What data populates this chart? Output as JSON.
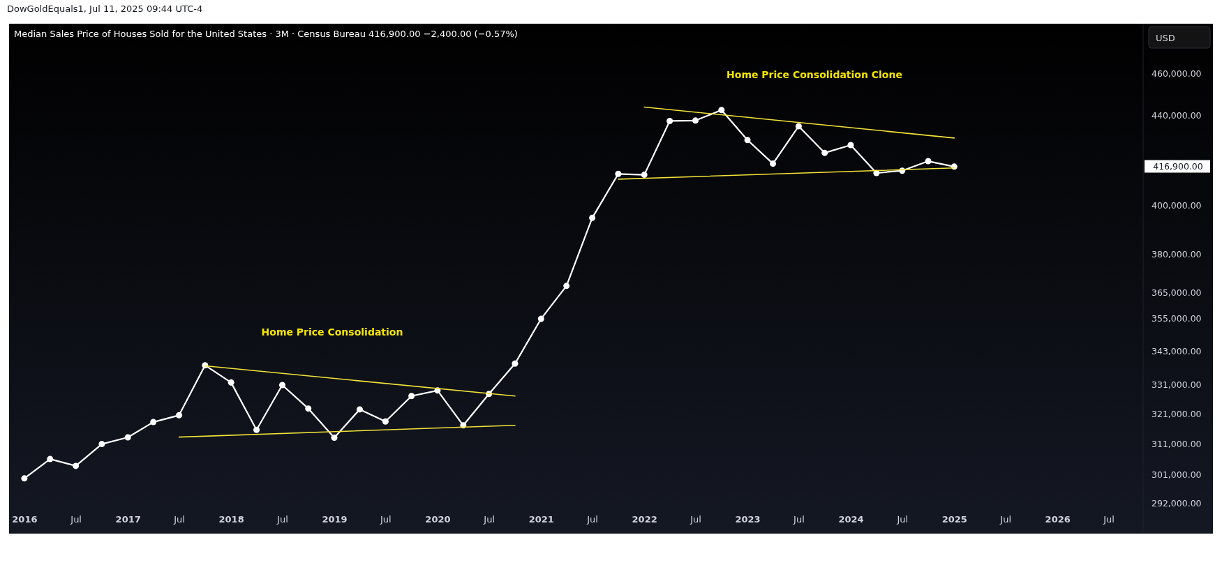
{
  "chart_data": {
    "type": "line",
    "title": "Median Sales Price of Houses Sold for the United States · 3M · Census Bureau  416,900.00  −2,400.00 (−0.57%)",
    "ylabel": "USD",
    "x": [
      "2016-01",
      "2016-04",
      "2016-07",
      "2016-10",
      "2017-01",
      "2017-04",
      "2017-07",
      "2017-10",
      "2018-01",
      "2018-04",
      "2018-07",
      "2018-10",
      "2019-01",
      "2019-04",
      "2019-07",
      "2019-10",
      "2020-01",
      "2020-04",
      "2020-07",
      "2020-10",
      "2021-01",
      "2021-04",
      "2021-07",
      "2021-10",
      "2022-01",
      "2022-04",
      "2022-07",
      "2022-10",
      "2023-01",
      "2023-04",
      "2023-07",
      "2023-10",
      "2024-01",
      "2024-04",
      "2024-07",
      "2024-10",
      "2025-01"
    ],
    "series": [
      {
        "color": "#ffffff",
        "marker": "circle",
        "values": [
          299800,
          306000,
          303800,
          310900,
          313100,
          318200,
          320500,
          337900,
          331800,
          315600,
          330900,
          322800,
          313000,
          322500,
          318400,
          327100,
          329000,
          317100,
          327800,
          338500,
          354900,
          367500,
          394900,
          413700,
          413300,
          437500,
          437700,
          442600,
          428800,
          418200,
          435100,
          423000,
          426500,
          414100,
          415100,
          419300,
          416900
        ]
      },
      {
        "type": "line",
        "color": "#f2e33a",
        "marker": "none",
        "x": [
          "2017-07",
          "2020-10"
        ],
        "values": [
          313200,
          317100
        ]
      },
      {
        "type": "line",
        "color": "#f2e33a",
        "marker": "none",
        "x": [
          "2017-10",
          "2020-10"
        ],
        "values": [
          337700,
          327100
        ]
      },
      {
        "type": "line",
        "color": "#f2e33a",
        "marker": "none",
        "x": [
          "2021-10",
          "2025-01"
        ],
        "values": [
          411400,
          416300
        ]
      },
      {
        "type": "line",
        "color": "#f2e33a",
        "marker": "none",
        "x": [
          "2022-01",
          "2025-01"
        ],
        "values": [
          444000,
          429700
        ]
      }
    ],
    "log": true,
    "grid": false,
    "xlim": [
      "2015-11-08",
      "2026-10-31"
    ],
    "xticks": [
      {
        "value": "2016-01",
        "label": "2016"
      },
      {
        "value": "2016-07",
        "label": "Jul"
      },
      {
        "value": "2017-01",
        "label": "2017"
      },
      {
        "value": "2017-07",
        "label": "Jul"
      },
      {
        "value": "2018-01",
        "label": "2018"
      },
      {
        "value": "2018-07",
        "label": "Jul"
      },
      {
        "value": "2019-01",
        "label": "2019"
      },
      {
        "value": "2019-07",
        "label": "Jul"
      },
      {
        "value": "2020-01",
        "label": "2020"
      },
      {
        "value": "2020-07",
        "label": "Jul"
      },
      {
        "value": "2021-01",
        "label": "2021"
      },
      {
        "value": "2021-07",
        "label": "Jul"
      },
      {
        "value": "2022-01",
        "label": "2022"
      },
      {
        "value": "2022-07",
        "label": "Jul"
      },
      {
        "value": "2023-01",
        "label": "2023"
      },
      {
        "value": "2023-07",
        "label": "Jul"
      },
      {
        "value": "2024-01",
        "label": "2024"
      },
      {
        "value": "2024-07",
        "label": "Jul"
      },
      {
        "value": "2025-01",
        "label": "2025"
      },
      {
        "value": "2025-07",
        "label": "Jul"
      },
      {
        "value": "2026-01",
        "label": "2026"
      },
      {
        "value": "2026-07",
        "label": "Jul"
      }
    ],
    "ylim": [
      282800,
      484900
    ],
    "yticks": [
      {
        "value": 292000,
        "label": "292,000.00"
      },
      {
        "value": 301000,
        "label": "301,000.00"
      },
      {
        "value": 311000,
        "label": "311,000.00"
      },
      {
        "value": 321000,
        "label": "321,000.00"
      },
      {
        "value": 331000,
        "label": "331,000.00"
      },
      {
        "value": 343000,
        "label": "343,000.00"
      },
      {
        "value": 355000,
        "label": "355,000.00"
      },
      {
        "value": 365000,
        "label": "365,000.00"
      },
      {
        "value": 380000,
        "label": "380,000.00"
      },
      {
        "value": 400000,
        "label": "400,000.00"
      },
      {
        "value": 440000,
        "label": "440,000.00"
      },
      {
        "value": 460000,
        "label": "460,000.00"
      }
    ],
    "annotations": [
      "DowGoldEquals1, Jul 11, 2025 09:44 UTC-4",
      "Home Price Consolidation",
      "Home Price Consolidation Clone",
      "416,900.00"
    ]
  }
}
